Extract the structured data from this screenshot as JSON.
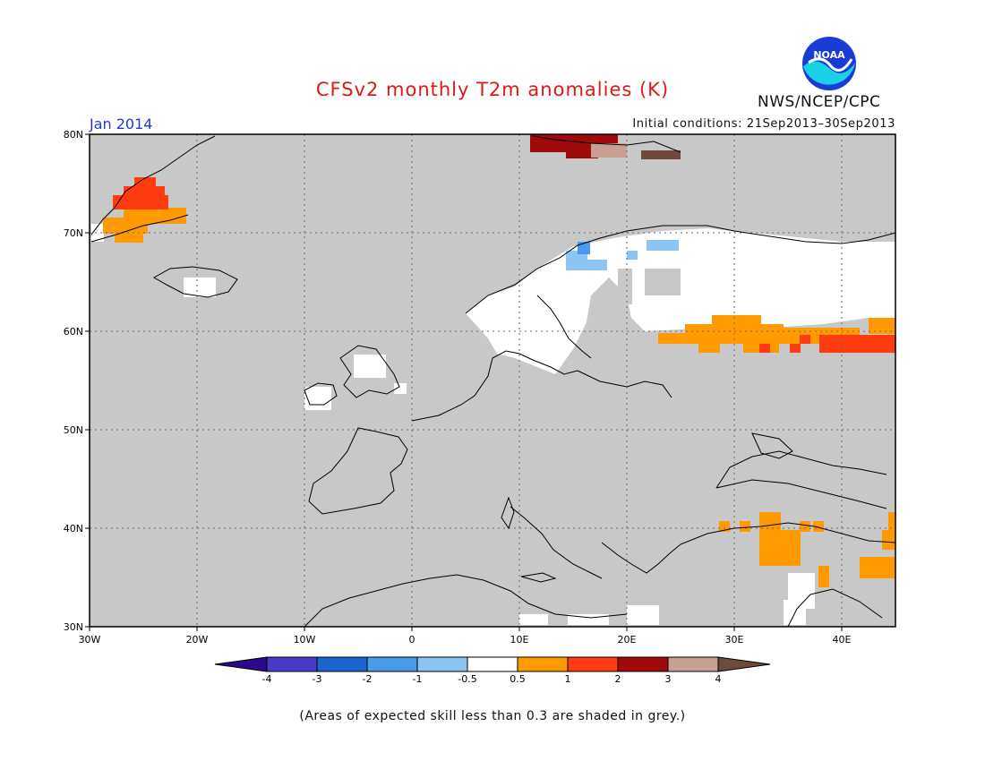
{
  "header": {
    "title": "CFSv2 monthly T2m anomalies (K)",
    "period": "Jan 2014",
    "initial_conditions": "Initial conditions: 21Sep2013–30Sep2013",
    "agency": "NWS/NCEP/CPC",
    "logo_text": "NOAA"
  },
  "map": {
    "lon_range": [
      -30,
      45
    ],
    "lat_range": [
      30,
      80
    ],
    "lat_ticks": [
      "80N",
      "70N",
      "60N",
      "50N",
      "40N",
      "30N"
    ],
    "lon_ticks": [
      "30W",
      "20W",
      "10W",
      "0",
      "10E",
      "20E",
      "30E",
      "40E"
    ],
    "background_color": "#c8c8c8",
    "grid": "dotted"
  },
  "legend": {
    "tick_labels": [
      "-4",
      "-3",
      "-2",
      "-1",
      "-0.5",
      "0.5",
      "1",
      "2",
      "3",
      "4"
    ],
    "colors": [
      "#2a0a8a",
      "#4a3ac8",
      "#1e64d0",
      "#4a9aec",
      "#8cc4f4",
      "#ffffff",
      "#ff9a00",
      "#ff3c10",
      "#a00a0a",
      "#c8a090",
      "#6e4a3c"
    ]
  },
  "footnote": "(Areas of expected skill less than 0.3 are shaded in grey.)",
  "anomaly_regions": [
    {
      "name": "greenland-warm",
      "category": "2"
    },
    {
      "name": "greenland-mild",
      "category": "1"
    },
    {
      "name": "svalbard-very-warm",
      "category": "3"
    },
    {
      "name": "svalbard-extreme",
      "category": "4"
    },
    {
      "name": "scandinavia-near-normal",
      "category": "-0.5..0.5"
    },
    {
      "name": "norway-cool",
      "category": "-1"
    },
    {
      "name": "russia-warm",
      "category": "1"
    },
    {
      "name": "russia-hot",
      "category": "2"
    },
    {
      "name": "turkey-mild",
      "category": "1"
    }
  ]
}
